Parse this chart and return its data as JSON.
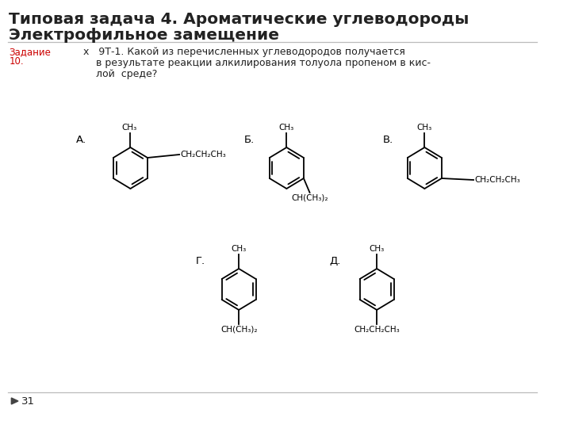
{
  "title_line1": "Типовая задача 4. Ароматические углеводороды",
  "title_line2": "Электрофильное замещение",
  "zadanie_label": "Задание\n10.",
  "zadanie_color": "#cc0000",
  "page_number": "31",
  "background_color": "#ffffff",
  "text_color": "#222222",
  "title_fontsize": 14.5,
  "body_fontsize": 9.5
}
